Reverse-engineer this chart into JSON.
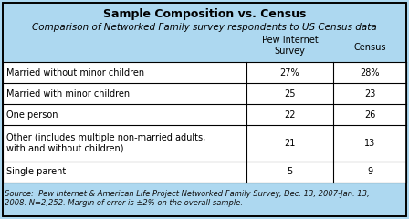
{
  "title": "Sample Composition vs. Census",
  "subtitle": "Comparison of Networked Family survey respondents to US Census data",
  "col_headers": [
    "Pew Internet\nSurvey",
    "Census"
  ],
  "rows": [
    {
      "label": "Married without minor children",
      "pew": "27%",
      "census": "28%"
    },
    {
      "label": "Married with minor children",
      "pew": "25",
      "census": "23"
    },
    {
      "label": "One person",
      "pew": "22",
      "census": "26"
    },
    {
      "label": "Other (includes multiple non-married adults,\nwith and without children)",
      "pew": "21",
      "census": "13"
    },
    {
      "label": "Single parent",
      "pew": "5",
      "census": "9"
    }
  ],
  "source": "Source:  Pew Internet & American Life Project Networked Family Survey, Dec. 13, 2007-Jan. 13,\n2008. N=2,252. Margin of error is ±2% on the overall sample.",
  "header_bg": "#add8f0",
  "table_bg": "#ffffff",
  "outer_bg": "#add8f0",
  "border_color": "#000000",
  "title_fontsize": 9,
  "subtitle_fontsize": 7.5,
  "cell_fontsize": 7,
  "source_fontsize": 6
}
